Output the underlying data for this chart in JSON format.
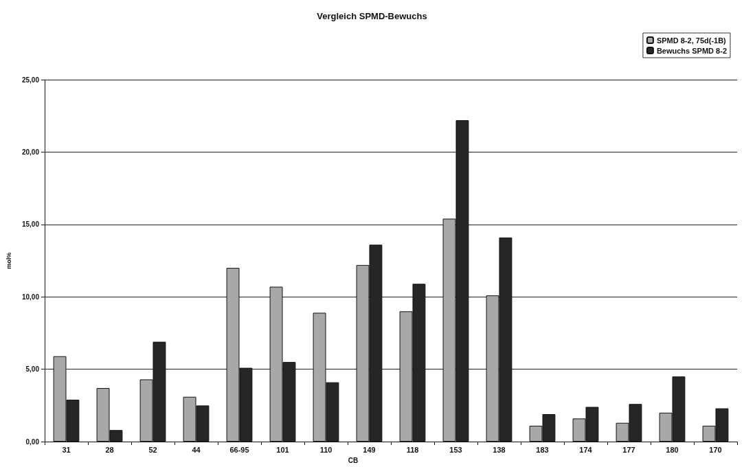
{
  "chart_data": {
    "type": "bar",
    "title": "Vergleich SPMD-Bewuchs",
    "xlabel": "CB",
    "ylabel": "mol%",
    "categories": [
      "31",
      "28",
      "52",
      "44",
      "66-95",
      "101",
      "110",
      "149",
      "118",
      "153",
      "138",
      "183",
      "174",
      "177",
      "180",
      "170"
    ],
    "series": [
      {
        "name": "SPMD 8-2, 75d(-1B)",
        "color": "#a8a8a8",
        "values": [
          5.9,
          3.7,
          4.3,
          3.1,
          12.0,
          10.7,
          8.9,
          12.2,
          9.0,
          15.4,
          10.1,
          1.1,
          1.6,
          1.3,
          2.0,
          1.1
        ]
      },
      {
        "name": "Bewuchs SPMD 8-2",
        "color": "#262626",
        "values": [
          2.9,
          0.8,
          6.9,
          2.5,
          5.1,
          5.5,
          4.1,
          13.6,
          10.9,
          22.2,
          14.1,
          1.9,
          2.4,
          2.6,
          4.5,
          2.3
        ]
      }
    ],
    "ylim": [
      0,
      25
    ],
    "yticks": [
      {
        "value": 0,
        "label": "0,00"
      },
      {
        "value": 5,
        "label": "5,00"
      },
      {
        "value": 10,
        "label": "10,00"
      },
      {
        "value": 15,
        "label": "15,00"
      },
      {
        "value": 20,
        "label": "20,00"
      },
      {
        "value": 25,
        "label": "25,00"
      }
    ],
    "grid": "y",
    "legend": "top right"
  }
}
